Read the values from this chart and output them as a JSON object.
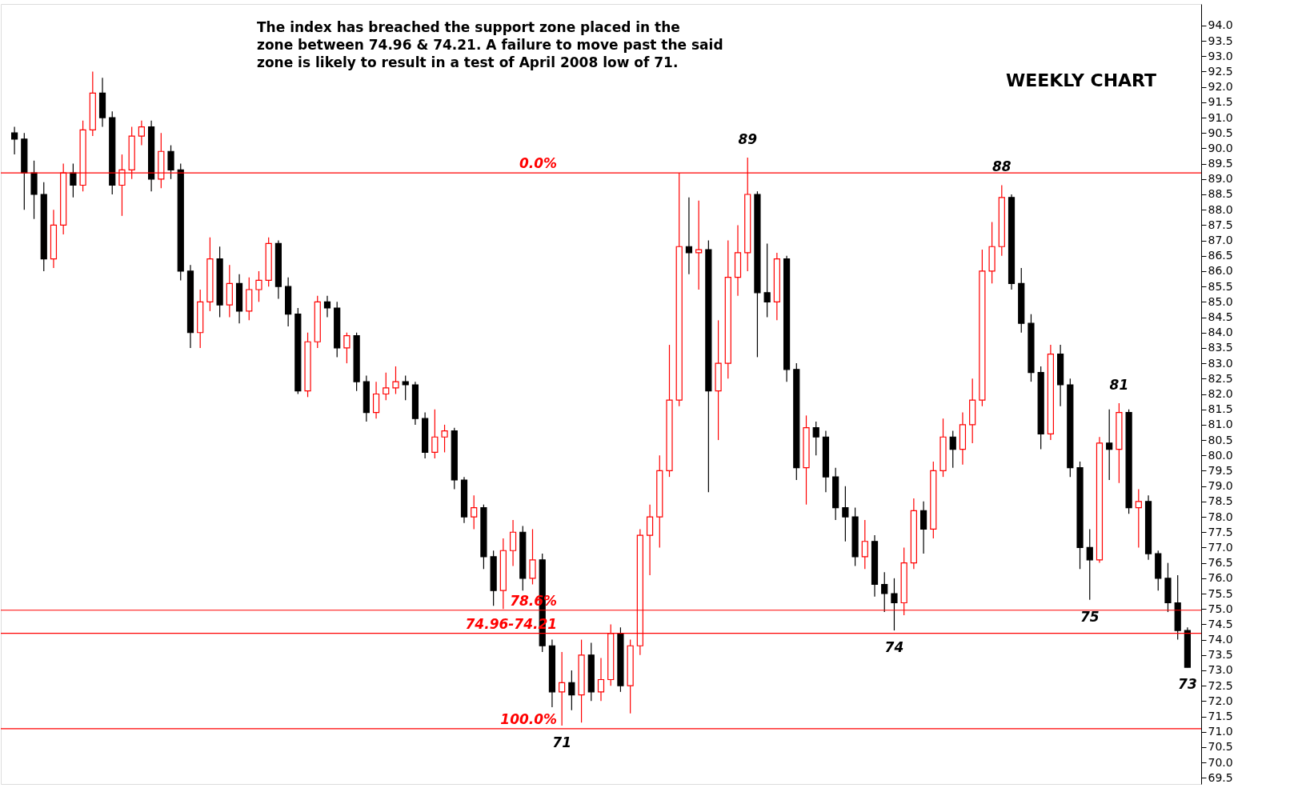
{
  "chart_data": {
    "type": "candlestick",
    "title": "WEEKLY CHART",
    "categories": [
      null,
      null,
      null,
      null,
      null,
      null,
      null,
      null,
      null,
      null,
      null,
      null,
      null,
      null,
      null,
      null,
      null,
      null,
      null,
      null,
      null,
      null,
      null,
      null,
      null,
      null,
      null,
      null,
      null,
      null,
      null,
      null,
      null,
      null,
      null,
      null,
      null,
      null,
      null,
      null,
      null,
      null,
      null,
      null,
      null,
      null,
      null,
      null,
      null,
      null,
      null,
      null,
      null,
      null,
      null,
      null,
      null,
      null,
      null,
      null,
      null,
      null,
      null,
      null,
      null,
      null,
      null,
      null,
      null,
      null,
      null,
      null,
      null,
      null,
      null,
      null,
      null,
      null,
      null,
      null,
      null,
      null,
      null,
      null,
      null,
      null,
      null,
      null,
      null,
      null,
      null,
      null,
      null,
      null,
      null,
      null,
      null,
      null,
      null,
      null,
      null,
      null,
      null,
      null,
      null,
      null,
      null,
      null,
      null,
      null,
      null,
      null,
      null,
      null,
      null,
      null,
      null,
      null,
      null,
      null,
      null
    ],
    "ohlc": [
      [
        90.5,
        90.7,
        89.8,
        90.3
      ],
      [
        90.3,
        90.5,
        88.0,
        89.2
      ],
      [
        89.2,
        89.6,
        87.7,
        88.5
      ],
      [
        88.5,
        88.9,
        86.0,
        86.4
      ],
      [
        86.4,
        88.0,
        86.1,
        87.5
      ],
      [
        87.5,
        89.5,
        87.2,
        89.2
      ],
      [
        89.2,
        89.5,
        88.4,
        88.8
      ],
      [
        88.8,
        90.9,
        88.6,
        90.6
      ],
      [
        90.6,
        92.5,
        90.4,
        91.8
      ],
      [
        91.8,
        92.3,
        90.7,
        91.0
      ],
      [
        91.0,
        91.2,
        88.5,
        88.8
      ],
      [
        88.8,
        89.8,
        87.8,
        89.3
      ],
      [
        89.3,
        90.7,
        89.0,
        90.4
      ],
      [
        90.4,
        90.9,
        90.1,
        90.7
      ],
      [
        90.7,
        90.9,
        88.6,
        89.0
      ],
      [
        89.0,
        90.5,
        88.7,
        89.9
      ],
      [
        89.9,
        90.1,
        89.0,
        89.3
      ],
      [
        89.3,
        89.5,
        85.7,
        86.0
      ],
      [
        86.0,
        86.2,
        83.5,
        84.0
      ],
      [
        84.0,
        85.4,
        83.5,
        85.0
      ],
      [
        85.0,
        87.1,
        84.7,
        86.4
      ],
      [
        86.4,
        86.8,
        84.5,
        84.9
      ],
      [
        84.9,
        86.2,
        84.5,
        85.6
      ],
      [
        85.6,
        85.9,
        84.3,
        84.7
      ],
      [
        84.7,
        85.8,
        84.4,
        85.4
      ],
      [
        85.4,
        86.0,
        85.0,
        85.7
      ],
      [
        85.7,
        87.1,
        85.5,
        86.9
      ],
      [
        86.9,
        87.0,
        85.1,
        85.5
      ],
      [
        85.5,
        85.8,
        84.2,
        84.6
      ],
      [
        84.6,
        84.8,
        82.0,
        82.1
      ],
      [
        82.1,
        84.0,
        81.9,
        83.7
      ],
      [
        83.7,
        85.2,
        83.5,
        85.0
      ],
      [
        85.0,
        85.2,
        84.5,
        84.8
      ],
      [
        84.8,
        85.0,
        83.2,
        83.5
      ],
      [
        83.5,
        84.0,
        83.0,
        83.9
      ],
      [
        83.9,
        84.0,
        82.1,
        82.4
      ],
      [
        82.4,
        82.6,
        81.1,
        81.4
      ],
      [
        81.4,
        82.4,
        81.2,
        82.0
      ],
      [
        82.0,
        82.7,
        81.8,
        82.2
      ],
      [
        82.2,
        82.9,
        82.0,
        82.4
      ],
      [
        82.4,
        82.6,
        81.8,
        82.3
      ],
      [
        82.3,
        82.4,
        81.0,
        81.2
      ],
      [
        81.2,
        81.4,
        79.9,
        80.1
      ],
      [
        80.1,
        81.5,
        79.9,
        80.6
      ],
      [
        80.6,
        81.0,
        80.1,
        80.8
      ],
      [
        80.8,
        80.9,
        78.9,
        79.2
      ],
      [
        79.2,
        79.3,
        77.8,
        78.0
      ],
      [
        78.0,
        78.7,
        77.6,
        78.3
      ],
      [
        78.3,
        78.4,
        76.3,
        76.7
      ],
      [
        76.7,
        76.9,
        75.1,
        75.6
      ],
      [
        75.6,
        77.3,
        75.0,
        76.9
      ],
      [
        76.9,
        77.9,
        76.4,
        77.5
      ],
      [
        77.5,
        77.7,
        75.6,
        76.0
      ],
      [
        76.0,
        77.6,
        75.8,
        76.6
      ],
      [
        76.6,
        76.8,
        73.6,
        73.8
      ],
      [
        73.8,
        74.0,
        71.8,
        72.3
      ],
      [
        72.3,
        73.6,
        71.2,
        72.6
      ],
      [
        72.6,
        73.0,
        71.7,
        72.2
      ],
      [
        72.2,
        74.0,
        71.3,
        73.5
      ],
      [
        73.5,
        73.9,
        72.0,
        72.3
      ],
      [
        72.3,
        73.4,
        72.0,
        72.7
      ],
      [
        72.7,
        74.5,
        72.5,
        74.2
      ],
      [
        74.2,
        74.4,
        72.3,
        72.5
      ],
      [
        72.5,
        74.0,
        71.6,
        73.8
      ],
      [
        73.8,
        77.6,
        73.5,
        77.4
      ],
      [
        77.4,
        78.4,
        76.1,
        78.0
      ],
      [
        78.0,
        80.0,
        77.0,
        79.5
      ],
      [
        79.5,
        83.6,
        79.3,
        81.8
      ],
      [
        81.8,
        89.2,
        81.6,
        86.8
      ],
      [
        86.8,
        88.4,
        85.9,
        86.6
      ],
      [
        86.6,
        88.3,
        85.4,
        86.7
      ],
      [
        86.7,
        87.0,
        78.8,
        82.1
      ],
      [
        82.1,
        84.4,
        80.5,
        83.0
      ],
      [
        83.0,
        87.0,
        82.5,
        85.8
      ],
      [
        85.8,
        87.5,
        85.2,
        86.6
      ],
      [
        86.6,
        89.7,
        86.0,
        88.5
      ],
      [
        88.5,
        88.6,
        83.2,
        85.3
      ],
      [
        85.3,
        86.9,
        84.5,
        85.0
      ],
      [
        85.0,
        86.6,
        84.4,
        86.4
      ],
      [
        86.4,
        86.5,
        82.4,
        82.8
      ],
      [
        82.8,
        83.0,
        79.2,
        79.6
      ],
      [
        79.6,
        81.3,
        78.4,
        80.9
      ],
      [
        80.9,
        81.1,
        80.0,
        80.6
      ],
      [
        80.6,
        80.8,
        78.8,
        79.3
      ],
      [
        79.3,
        79.6,
        77.9,
        78.3
      ],
      [
        78.3,
        79.0,
        77.2,
        78.0
      ],
      [
        78.0,
        78.3,
        76.4,
        76.7
      ],
      [
        76.7,
        77.9,
        76.3,
        77.2
      ],
      [
        77.2,
        77.4,
        75.4,
        75.8
      ],
      [
        75.8,
        76.2,
        74.9,
        75.5
      ],
      [
        75.5,
        76.0,
        74.3,
        75.2
      ],
      [
        75.2,
        77.0,
        74.8,
        76.5
      ],
      [
        76.5,
        78.6,
        76.3,
        78.2
      ],
      [
        78.2,
        78.5,
        76.8,
        77.6
      ],
      [
        77.6,
        79.8,
        77.3,
        79.5
      ],
      [
        79.5,
        81.2,
        79.3,
        80.6
      ],
      [
        80.6,
        80.8,
        79.6,
        80.2
      ],
      [
        80.2,
        81.4,
        79.7,
        81.0
      ],
      [
        81.0,
        82.5,
        80.4,
        81.8
      ],
      [
        81.8,
        86.7,
        81.6,
        86.0
      ],
      [
        86.0,
        87.6,
        85.6,
        86.8
      ],
      [
        86.8,
        88.8,
        86.5,
        88.4
      ],
      [
        88.4,
        88.5,
        85.4,
        85.6
      ],
      [
        85.6,
        86.1,
        84.0,
        84.3
      ],
      [
        84.3,
        84.6,
        82.4,
        82.7
      ],
      [
        82.7,
        82.9,
        80.2,
        80.7
      ],
      [
        80.7,
        83.6,
        80.5,
        83.3
      ],
      [
        83.3,
        83.6,
        81.6,
        82.3
      ],
      [
        82.3,
        82.5,
        79.3,
        79.6
      ],
      [
        79.6,
        79.8,
        76.3,
        77.0
      ],
      [
        77.0,
        77.6,
        75.3,
        76.6
      ],
      [
        76.6,
        80.6,
        76.5,
        80.4
      ],
      [
        80.4,
        81.5,
        79.2,
        80.2
      ],
      [
        80.2,
        81.7,
        79.1,
        81.4
      ],
      [
        81.4,
        81.5,
        78.1,
        78.3
      ],
      [
        78.3,
        78.9,
        77.0,
        78.5
      ],
      [
        78.5,
        78.7,
        76.6,
        76.8
      ],
      [
        76.8,
        76.9,
        75.6,
        76.0
      ],
      [
        76.0,
        76.5,
        74.9,
        75.2
      ],
      [
        75.2,
        76.1,
        74.0,
        74.3
      ],
      [
        74.3,
        74.4,
        73.1,
        73.1
      ]
    ],
    "colors": [
      "#000000",
      "#000000",
      "#000000",
      "#000000",
      "#ff0000",
      "#ff0000",
      "#000000",
      "#ff0000",
      "#ff0000",
      "#000000",
      "#000000",
      "#ff0000",
      "#ff0000",
      "#ff0000",
      "#000000",
      "#ff0000",
      "#000000",
      "#000000",
      "#000000",
      "#ff0000",
      "#ff0000",
      "#000000",
      "#ff0000",
      "#000000",
      "#ff0000",
      "#ff0000",
      "#ff0000",
      "#000000",
      "#000000",
      "#000000",
      "#ff0000",
      "#ff0000",
      "#000000",
      "#000000",
      "#ff0000",
      "#000000",
      "#000000",
      "#ff0000",
      "#ff0000",
      "#ff0000",
      "#000000",
      "#000000",
      "#000000",
      "#ff0000",
      "#ff0000",
      "#000000",
      "#000000",
      "#ff0000",
      "#000000",
      "#000000",
      "#ff0000",
      "#ff0000",
      "#000000",
      "#ff0000",
      "#000000",
      "#000000",
      "#ff0000",
      "#000000",
      "#ff0000",
      "#000000",
      "#ff0000",
      "#ff0000",
      "#000000",
      "#ff0000",
      "#ff0000",
      "#ff0000",
      "#ff0000",
      "#ff0000",
      "#ff0000",
      "#000000",
      "#ff0000",
      "#000000",
      "#ff0000",
      "#ff0000",
      "#ff0000",
      "#ff0000",
      "#000000",
      "#000000",
      "#ff0000",
      "#000000",
      "#000000",
      "#ff0000",
      "#000000",
      "#000000",
      "#000000",
      "#000000",
      "#000000",
      "#ff0000",
      "#000000",
      "#000000",
      "#000000",
      "#ff0000",
      "#ff0000",
      "#000000",
      "#ff0000",
      "#ff0000",
      "#000000",
      "#ff0000",
      "#ff0000",
      "#ff0000",
      "#ff0000",
      "#ff0000",
      "#000000",
      "#000000",
      "#000000",
      "#000000",
      "#ff0000",
      "#000000",
      "#000000",
      "#000000",
      "#000000",
      "#ff0000",
      "#000000",
      "#ff0000",
      "#000000",
      "#ff0000",
      "#000000",
      "#000000",
      "#000000",
      "#000000",
      "#000000"
    ],
    "ylim": [
      69.3,
      94.7
    ],
    "yticks": [
      69.5,
      {
        "value": 70,
        "label": "70.0"
      },
      70.5,
      {
        "value": 71,
        "label": "71.0"
      },
      71.5,
      {
        "value": 72,
        "label": "72.0"
      },
      72.5,
      {
        "value": 73,
        "label": "73.0"
      },
      73.5,
      {
        "value": 74,
        "label": "74.0"
      },
      74.5,
      {
        "value": 75,
        "label": "75.0"
      },
      75.5,
      {
        "value": 76,
        "label": "76.0"
      },
      76.5,
      {
        "value": 77,
        "label": "77.0"
      },
      77.5,
      {
        "value": 78,
        "label": "78.0"
      },
      78.5,
      {
        "value": 79,
        "label": "79.0"
      },
      79.5,
      {
        "value": 80,
        "label": "80.0"
      },
      80.5,
      {
        "value": 81,
        "label": "81.0"
      },
      81.5,
      {
        "value": 82,
        "label": "82.0"
      },
      82.5,
      {
        "value": 83,
        "label": "83.0"
      },
      83.5,
      {
        "value": 84,
        "label": "84.0"
      },
      84.5,
      {
        "value": 85,
        "label": "85.0"
      },
      85.5,
      {
        "value": 86,
        "label": "86.0"
      },
      86.5,
      {
        "value": 87,
        "label": "87.0"
      },
      87.5,
      {
        "value": 88,
        "label": "88.0"
      },
      88.5,
      {
        "value": 89,
        "label": "89.0"
      },
      89.5,
      {
        "value": 90,
        "label": "90.0"
      },
      90.5,
      {
        "value": 91,
        "label": "91.0"
      },
      91.5,
      {
        "value": 92,
        "label": "92.0"
      },
      92.5,
      {
        "value": 93,
        "label": "93.0"
      },
      93.5,
      {
        "value": 94,
        "label": "94.0"
      }
    ],
    "tick_labels": "y",
    "grid": false,
    "ref_lines": [
      {
        "axis": "y",
        "value": 89.2,
        "color": "#ff0000"
      },
      {
        "axis": "y",
        "value": 74.96,
        "color": "#ff0000"
      },
      {
        "axis": "y",
        "value": 74.21,
        "color": "#ff0000"
      },
      {
        "axis": "y",
        "value": 71.1,
        "color": "#ff0000"
      }
    ],
    "annotations": [
      "The index has breached the support zone placed in the\nzone between 74.96 & 74.21. A failure to move past the said\nzone is likely to result in a test of April 2008 low of 71.",
      {
        "text": "89",
        "y": 89.7
      },
      {
        "text": "88",
        "y": 88.8
      },
      {
        "text": "81",
        "y": 81.7
      },
      {
        "text": "75",
        "y": 75.3
      },
      {
        "text": "74",
        "y": 74.3
      },
      {
        "text": "73",
        "y": 73.1
      },
      {
        "text": "71",
        "y": 71.2
      },
      {
        "text": "0.0%",
        "y": 89.2
      },
      {
        "text": "78.6%",
        "y": 74.96
      },
      {
        "text": "74.96-74.21",
        "y": 74.21
      },
      {
        "text": "100.0%",
        "y": 71.1
      }
    ]
  }
}
